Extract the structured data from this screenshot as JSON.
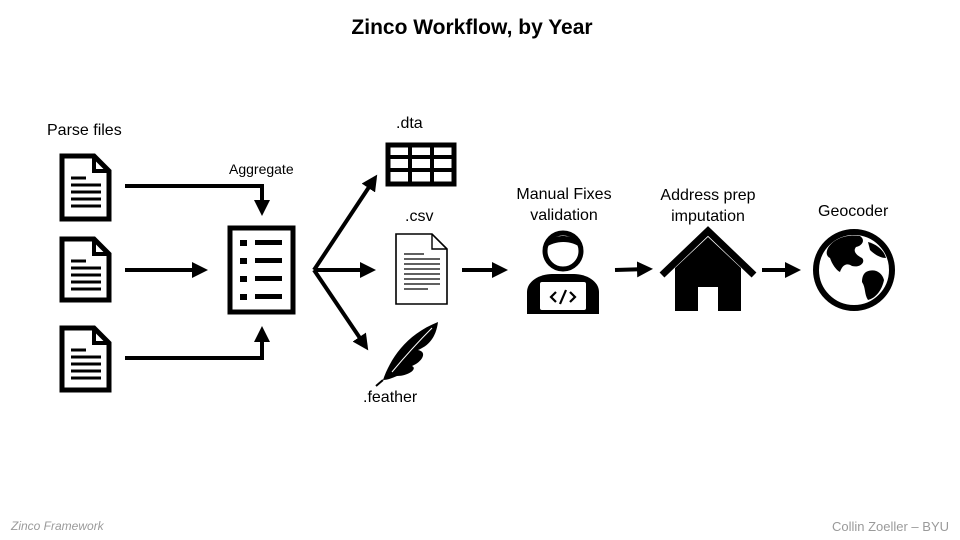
{
  "title": "Zinco Workflow, by Year",
  "labels": {
    "parse_files": "Parse files",
    "aggregate": "Aggregate",
    "dta": ".dta",
    "csv": ".csv",
    "feather": ".feather",
    "manual_fixes_line1": "Manual Fixes",
    "manual_fixes_line2": "validation",
    "address_prep_line1": "Address prep",
    "address_prep_line2": "imputation",
    "geocoder": "Geocoder"
  },
  "footer": {
    "left": "Zinco Framework",
    "right": "Collin Zoeller – BYU"
  },
  "icons": {
    "source_files": "document-icon",
    "aggregate": "checklist-icon",
    "dta": "table-icon",
    "csv": "text-file-icon",
    "feather": "feather-icon",
    "manual_fixes": "developer-laptop-icon",
    "address_prep": "house-icon",
    "geocoder": "globe-icon"
  },
  "colors": {
    "ink": "#000000",
    "footer_text": "#9a9a9a",
    "background": "#ffffff"
  }
}
